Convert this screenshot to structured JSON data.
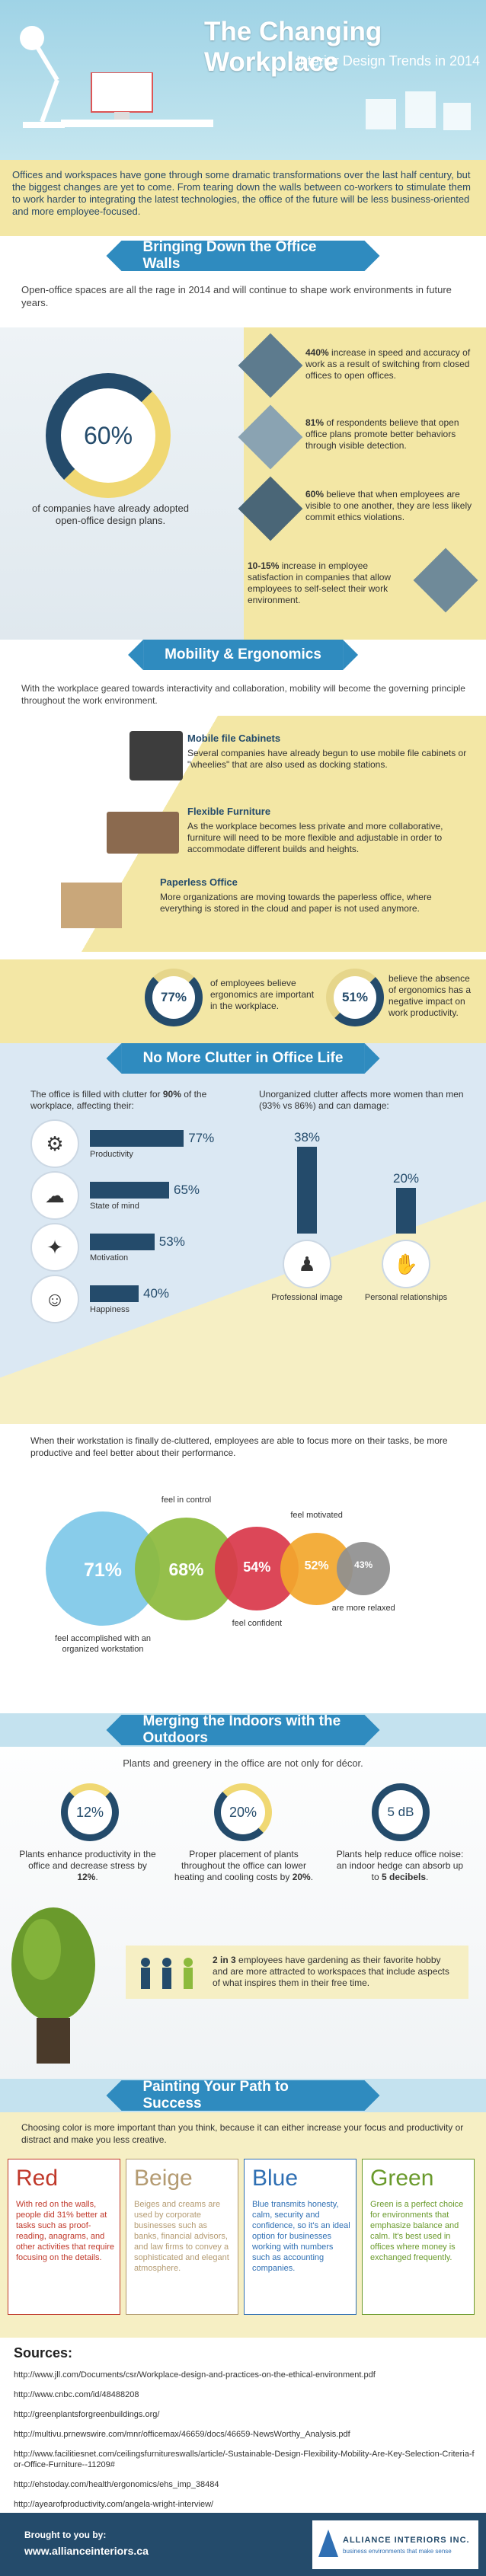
{
  "header": {
    "title": "The Changing Workplace",
    "subtitle": "Interior Design Trends in 2014",
    "intro": "Offices and workspaces have gone through some dramatic transformations over the last half century, but the biggest changes are yet to come. From tearing down the walls between co-workers to stimulate them to work harder to integrating the latest technologies, the office of the future will be less business-oriented and more employee-focused."
  },
  "walls": {
    "heading": "Bringing Down the Office Walls",
    "intro": "Open-office spaces are all the rage in 2014 and will continue to shape work environments in future years.",
    "ring_value": "60%",
    "ring_caption": "of companies have already adopted open-office design plans.",
    "stats": [
      {
        "bold": "440%",
        "text": " increase in speed and accuracy of work as a result of switching from closed offices to open offices."
      },
      {
        "bold": "81%",
        "text": " of respondents believe that open office plans promote better behaviors through visible detection."
      },
      {
        "bold": "60%",
        "text": " believe that when employees are visible to one another, they are less likely commit ethics violations."
      },
      {
        "bold": "10-15%",
        "text": " increase in employee satisfaction in companies that allow employees to self-select their work environment."
      }
    ]
  },
  "mobility": {
    "heading": "Mobility & Ergonomics",
    "intro": "With the workplace geared towards interactivity and collaboration, mobility will become the governing principle throughout the work environment.",
    "items": [
      {
        "title": "Mobile file Cabinets",
        "text": "Several companies have already begun to use mobile file cabinets or \"wheelies\" that are also used as docking stations."
      },
      {
        "title": "Flexible Furniture",
        "text": "As the workplace becomes less private and more collaborative, furniture will need to be more flexible and adjustable in order to accommodate different builds and heights."
      },
      {
        "title": "Paperless Office",
        "text": "More organizations are moving towards the paperless office, where everything is stored in the cloud and paper is not used anymore."
      }
    ],
    "stat1_value": "77%",
    "stat1_text": "of employees believe ergonomics are important in the workplace.",
    "stat2_value": "51%",
    "stat2_text": "believe the absence of ergonomics has a negative impact on work productivity."
  },
  "clutter": {
    "heading": "No More Clutter in Office Life",
    "left_intro_a": "The office is filled with clutter for ",
    "left_intro_bold": "90%",
    "left_intro_b": " of the workplace, affecting their:",
    "right_intro": "Unorganized clutter affects more women than men (93% vs 86%) and can damage:",
    "bars": [
      {
        "label": "Productivity",
        "value": "77%",
        "icon": "gears-icon"
      },
      {
        "label": "State of mind",
        "value": "65%",
        "icon": "brain-icon"
      },
      {
        "label": "Motivation",
        "value": "53%",
        "icon": "lightbulb-icon"
      },
      {
        "label": "Happiness",
        "value": "40%",
        "icon": "smiley-icon"
      }
    ],
    "cols": [
      {
        "label": "Professional image",
        "value": "38%",
        "icon": "person-icon"
      },
      {
        "label": "Personal relationships",
        "value": "20%",
        "icon": "handshake-icon"
      }
    ],
    "after_intro": "When their workstation is finally de-cluttered, employees are able to focus more on their tasks, be more productive and feel better about their performance.",
    "circles": [
      {
        "value": "71%",
        "label": "feel accomplished with an organized workstation",
        "color": "#7ec8e8"
      },
      {
        "value": "68%",
        "label": "feel in control",
        "color": "#8cba3c"
      },
      {
        "value": "54%",
        "label": "feel confident",
        "color": "#d9374a"
      },
      {
        "value": "52%",
        "label": "feel motivated",
        "color": "#f2a72c"
      },
      {
        "value": "43%",
        "label": "are more relaxed",
        "color": "#8f8f8f"
      }
    ]
  },
  "outdoors": {
    "heading": "Merging the Indoors with the Outdoors",
    "intro": "Plants and greenery in the office are not only for décor.",
    "stats": [
      {
        "value": "12%",
        "text_a": "Plants enhance productivity in the office and decrease stress by ",
        "bold": "12%",
        "text_b": "."
      },
      {
        "value": "20%",
        "text_a": "Proper placement of plants throughout the office can lower heating and cooling costs by ",
        "bold": "20%",
        "text_b": "."
      },
      {
        "value": "5 dB",
        "text_a": "Plants help reduce office noise: an indoor hedge can absorb up to ",
        "bold": "5 decibels",
        "text_b": "."
      }
    ],
    "garden_bold": "2 in 3",
    "garden_text": " employees have gardening as their favorite hobby and are more attracted to workspaces that include aspects of what inspires them in their free time."
  },
  "color": {
    "heading": "Painting Your Path to Success",
    "intro": "Choosing color is more important than you think, because it can either increase your focus and productivity or distract and make you less creative.",
    "cards": [
      {
        "title": "Red",
        "text": "With red on the walls, people did 31% better at tasks such as proof-reading, anagrams, and other activities that require focusing on the details.",
        "color": "#c0392b"
      },
      {
        "title": "Beige",
        "text": "Beiges and creams are used by corporate businesses such as banks, financial advisors, and law firms to convey a sophisticated and elegant atmosphere.",
        "color": "#b49b72"
      },
      {
        "title": "Blue",
        "text": "Blue transmits honesty, calm, security and confidence, so it's an ideal option for businesses working with numbers such as accounting companies.",
        "color": "#2f6fb3"
      },
      {
        "title": "Green",
        "text": "Green is a perfect choice for environments that emphasize balance and calm. It's best used in offices where money is exchanged frequently.",
        "color": "#6a9a2c"
      }
    ]
  },
  "sources": {
    "heading": "Sources:",
    "links": [
      "http://www.jll.com/Documents/csr/Workplace-design-and-practices-on-the-ethical-environment.pdf",
      "http://www.cnbc.com/id/48488208",
      "http://greenplantsforgreenbuildings.org/",
      "http://multivu.prnewswire.com/mnr/officemax/46659/docs/46659-NewsWorthy_Analysis.pdf",
      "http://www.facilitiesnet.com/ceilingsfurnitureswalls/article/-Sustainable-Design-Flexibility-Mobility-Are-Key-Selection-Criteria-for-Office-Furniture--11209#",
      "http://ehstoday.com/health/ergonomics/ehs_imp_38484",
      "http://ayearofproductivity.com/angela-wright-interview/"
    ]
  },
  "footer": {
    "brought": "Brought to you by:",
    "url": "www.allianceinteriors.ca",
    "logo_name": "ALLIANCE INTERIORS INC.",
    "logo_tagline": "business environments that make sense"
  }
}
